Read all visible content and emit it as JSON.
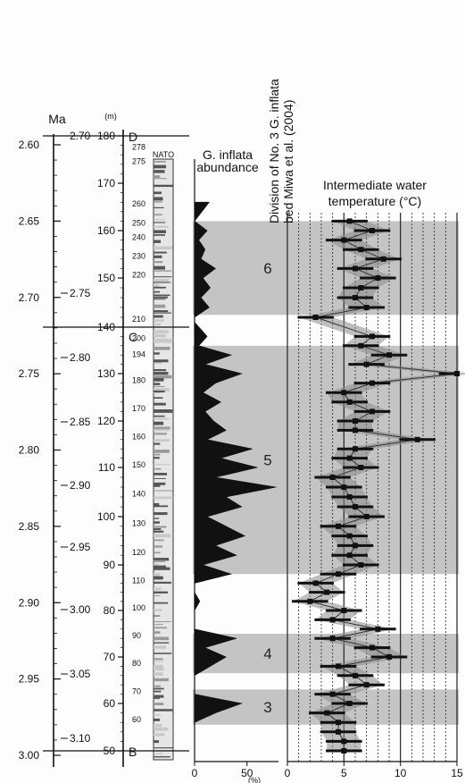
{
  "chart_data": {
    "type": "composite-stratigraphic-log",
    "age_axis": {
      "label": "Ma",
      "ticks": [
        "2.60",
        "2.65",
        "2.70",
        "2.75",
        "2.80",
        "2.85",
        "2.90",
        "2.95",
        "3.00"
      ],
      "minor_ticks": [
        "2.70",
        "2.75",
        "2.80",
        "2.85",
        "2.90",
        "2.95",
        "3.00",
        "3.05",
        "3.10"
      ],
      "range": [
        2.6,
        3.0
      ]
    },
    "depth_axis": {
      "label": "(m)",
      "ticks": [
        "180",
        "170",
        "160",
        "150",
        "140",
        "130",
        "120",
        "110",
        "100",
        "90",
        "80",
        "70",
        "60",
        "50"
      ],
      "range": [
        180,
        50
      ]
    },
    "core_labels": {
      "label": "NATO",
      "ticks": [
        "278",
        "275",
        "260",
        "250",
        "240",
        "230",
        "220",
        "210",
        "200",
        "194",
        "180",
        "170",
        "160",
        "150",
        "140",
        "130",
        "120",
        "110",
        "100",
        "90",
        "80",
        "70",
        "60"
      ]
    },
    "boundaries": [
      {
        "label": "D",
        "depth": 180
      },
      {
        "label": "C",
        "depth": 140
      },
      {
        "label": "B",
        "depth": 50
      }
    ],
    "abundance": {
      "title": "G. inflata abundance",
      "xlabel": "(%)",
      "xticks": [
        "0",
        "50"
      ],
      "xlim": [
        0,
        80
      ],
      "depths": [
        166,
        162,
        160,
        158,
        156,
        154,
        152,
        150,
        148,
        146,
        144,
        142,
        141,
        138,
        136,
        134,
        132,
        130,
        128,
        126,
        124,
        122,
        120,
        118,
        116,
        114,
        112,
        110,
        108,
        106,
        104,
        102,
        100,
        98,
        96,
        94,
        92,
        90,
        88,
        86,
        84,
        82,
        80,
        78,
        76,
        74,
        72,
        70,
        68,
        66,
        64,
        62,
        60,
        58,
        56,
        54,
        52
      ],
      "values": [
        14,
        0,
        12,
        4,
        10,
        6,
        20,
        8,
        15,
        6,
        14,
        0,
        0,
        12,
        4,
        35,
        10,
        45,
        20,
        8,
        25,
        10,
        18,
        30,
        12,
        55,
        25,
        60,
        20,
        78,
        30,
        45,
        12,
        30,
        48,
        20,
        40,
        8,
        35,
        0,
        0,
        5,
        0,
        0,
        0,
        40,
        10,
        30,
        15,
        0,
        0,
        0,
        45,
        20,
        0,
        0,
        0
      ]
    },
    "divisions": {
      "title": "Division of No. 3 G. inflata bed Miwa et al. (2004)",
      "bands": [
        {
          "label": "6",
          "top": 162,
          "bottom": 142.5
        },
        {
          "label": "5",
          "top": 136,
          "bottom": 88
        },
        {
          "label": "4",
          "top": 75,
          "bottom": 66.5
        },
        {
          "label": "3",
          "top": 63,
          "bottom": 55.5
        }
      ]
    },
    "temperature": {
      "title": "Intermediate water temperature (°C)",
      "xticks": [
        "0",
        "5",
        "10",
        "15"
      ],
      "xlim": [
        0,
        15
      ],
      "depths": [
        162,
        160,
        158,
        156,
        154,
        152,
        150,
        148,
        146,
        144,
        142,
        138,
        136,
        134,
        132,
        130,
        128,
        126,
        124,
        122,
        120,
        118,
        116,
        114,
        112,
        110,
        108,
        106,
        104,
        102,
        100,
        98,
        96,
        94,
        92,
        90,
        88,
        86,
        84,
        82,
        80,
        78,
        76,
        74,
        72,
        70,
        68,
        66,
        64,
        62,
        60,
        58,
        56,
        54,
        52,
        50
      ],
      "values": [
        5.5,
        7.5,
        5.0,
        6.5,
        8.5,
        6.0,
        8.0,
        6.5,
        6.0,
        7.0,
        2.5,
        7.5,
        6.5,
        9.0,
        7.0,
        15.0,
        7.5,
        5.0,
        5.5,
        7.5,
        6.0,
        6.0,
        11.5,
        6.0,
        5.5,
        6.5,
        4.0,
        5.0,
        5.5,
        6.0,
        7.0,
        4.5,
        5.5,
        6.0,
        5.5,
        6.5,
        4.5,
        2.5,
        3.5,
        2.0,
        5.0,
        4.0,
        8.0,
        4.0,
        7.5,
        9.0,
        4.5,
        6.0,
        7.0,
        4.0,
        5.5,
        3.5,
        4.5,
        4.5,
        5.0,
        5.0
      ]
    }
  }
}
